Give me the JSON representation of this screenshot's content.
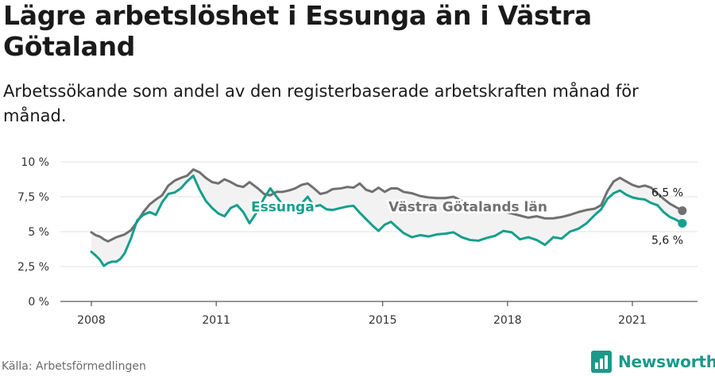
{
  "header": {
    "title": "Lägre arbetslöshet i Essunga än i Västra Götaland",
    "subtitle": "Arbetssökande som andel av den registerbaserade arbetskraften månad för månad."
  },
  "footer": {
    "source": "Källa: Arbetsförmedlingen",
    "brand": "Newsworthy",
    "brand_icon": "newsworthy-logo-icon",
    "brand_color": "#1a9a8a"
  },
  "chart_data": {
    "type": "line",
    "xlim": [
      2008.0,
      2022.5
    ],
    "ylim": [
      0,
      10
    ],
    "y_ticks": [
      {
        "value": 0,
        "label": "0 %"
      },
      {
        "value": 2.5,
        "label": "2,5 %"
      },
      {
        "value": 5,
        "label": "5 %"
      },
      {
        "value": 7.5,
        "label": "7,5 %"
      },
      {
        "value": 10,
        "label": "10 %"
      }
    ],
    "x_ticks": [
      {
        "value": 2008,
        "label": "2008"
      },
      {
        "value": 2011,
        "label": "2011"
      },
      {
        "value": 2015,
        "label": "2015"
      },
      {
        "value": 2018,
        "label": "2018"
      },
      {
        "value": 2021,
        "label": "2021"
      }
    ],
    "grid": true,
    "series": [
      {
        "name": "Västra Götalands län",
        "color": "#707070",
        "end_label": "6,5 %",
        "points": [
          [
            2008.0,
            4.95
          ],
          [
            2008.1,
            4.75
          ],
          [
            2008.2,
            4.65
          ],
          [
            2008.3,
            4.45
          ],
          [
            2008.4,
            4.3
          ],
          [
            2008.5,
            4.45
          ],
          [
            2008.6,
            4.6
          ],
          [
            2008.7,
            4.7
          ],
          [
            2008.8,
            4.8
          ],
          [
            2008.95,
            5.1
          ],
          [
            2009.1,
            5.7
          ],
          [
            2009.25,
            6.4
          ],
          [
            2009.4,
            6.95
          ],
          [
            2009.55,
            7.3
          ],
          [
            2009.7,
            7.6
          ],
          [
            2009.85,
            8.3
          ],
          [
            2010.0,
            8.65
          ],
          [
            2010.15,
            8.85
          ],
          [
            2010.3,
            9.0
          ],
          [
            2010.45,
            9.45
          ],
          [
            2010.6,
            9.25
          ],
          [
            2010.75,
            8.85
          ],
          [
            2010.9,
            8.55
          ],
          [
            2011.05,
            8.45
          ],
          [
            2011.2,
            8.75
          ],
          [
            2011.35,
            8.55
          ],
          [
            2011.5,
            8.3
          ],
          [
            2011.65,
            8.2
          ],
          [
            2011.8,
            8.55
          ],
          [
            2012.0,
            8.1
          ],
          [
            2012.15,
            7.7
          ],
          [
            2012.3,
            7.6
          ],
          [
            2012.45,
            7.85
          ],
          [
            2012.6,
            7.85
          ],
          [
            2012.75,
            7.95
          ],
          [
            2012.9,
            8.1
          ],
          [
            2013.05,
            8.35
          ],
          [
            2013.2,
            8.45
          ],
          [
            2013.35,
            8.1
          ],
          [
            2013.5,
            7.7
          ],
          [
            2013.65,
            7.8
          ],
          [
            2013.8,
            8.05
          ],
          [
            2014.0,
            8.1
          ],
          [
            2014.15,
            8.2
          ],
          [
            2014.3,
            8.15
          ],
          [
            2014.45,
            8.45
          ],
          [
            2014.6,
            8.0
          ],
          [
            2014.75,
            7.85
          ],
          [
            2014.9,
            8.15
          ],
          [
            2015.05,
            7.85
          ],
          [
            2015.2,
            8.1
          ],
          [
            2015.35,
            8.1
          ],
          [
            2015.5,
            7.85
          ],
          [
            2015.7,
            7.75
          ],
          [
            2015.9,
            7.55
          ],
          [
            2016.1,
            7.45
          ],
          [
            2016.3,
            7.4
          ],
          [
            2016.5,
            7.4
          ],
          [
            2016.7,
            7.5
          ],
          [
            2016.9,
            7.2
          ],
          [
            2017.1,
            6.95
          ],
          [
            2017.3,
            6.85
          ],
          [
            2017.5,
            6.75
          ],
          [
            2017.7,
            6.65
          ],
          [
            2017.9,
            6.45
          ],
          [
            2018.1,
            6.3
          ],
          [
            2018.3,
            6.15
          ],
          [
            2018.5,
            6.0
          ],
          [
            2018.7,
            6.1
          ],
          [
            2018.9,
            5.95
          ],
          [
            2019.1,
            5.95
          ],
          [
            2019.3,
            6.05
          ],
          [
            2019.5,
            6.2
          ],
          [
            2019.7,
            6.4
          ],
          [
            2019.9,
            6.55
          ],
          [
            2020.1,
            6.65
          ],
          [
            2020.25,
            6.9
          ],
          [
            2020.4,
            7.9
          ],
          [
            2020.55,
            8.6
          ],
          [
            2020.7,
            8.85
          ],
          [
            2020.85,
            8.6
          ],
          [
            2021.0,
            8.35
          ],
          [
            2021.15,
            8.2
          ],
          [
            2021.3,
            8.3
          ],
          [
            2021.45,
            8.15
          ],
          [
            2021.6,
            7.75
          ],
          [
            2021.75,
            7.35
          ],
          [
            2021.9,
            7.0
          ],
          [
            2022.05,
            6.75
          ],
          [
            2022.2,
            6.5
          ]
        ]
      },
      {
        "name": "Essunga",
        "color": "#12a08c",
        "end_label": "5,6 %",
        "points": [
          [
            2008.0,
            3.55
          ],
          [
            2008.1,
            3.3
          ],
          [
            2008.2,
            3.0
          ],
          [
            2008.3,
            2.55
          ],
          [
            2008.4,
            2.75
          ],
          [
            2008.5,
            2.85
          ],
          [
            2008.6,
            2.85
          ],
          [
            2008.7,
            3.05
          ],
          [
            2008.8,
            3.45
          ],
          [
            2008.95,
            4.5
          ],
          [
            2009.1,
            5.8
          ],
          [
            2009.25,
            6.2
          ],
          [
            2009.4,
            6.4
          ],
          [
            2009.55,
            6.2
          ],
          [
            2009.7,
            7.1
          ],
          [
            2009.85,
            7.7
          ],
          [
            2010.0,
            7.8
          ],
          [
            2010.15,
            8.1
          ],
          [
            2010.3,
            8.6
          ],
          [
            2010.45,
            9.0
          ],
          [
            2010.6,
            8.0
          ],
          [
            2010.75,
            7.2
          ],
          [
            2010.9,
            6.7
          ],
          [
            2011.05,
            6.3
          ],
          [
            2011.2,
            6.1
          ],
          [
            2011.35,
            6.7
          ],
          [
            2011.5,
            6.9
          ],
          [
            2011.65,
            6.4
          ],
          [
            2011.8,
            5.6
          ],
          [
            2012.0,
            6.5
          ],
          [
            2012.15,
            7.4
          ],
          [
            2012.3,
            8.1
          ],
          [
            2012.45,
            7.5
          ],
          [
            2012.6,
            6.9
          ],
          [
            2012.75,
            6.4
          ],
          [
            2012.9,
            6.6
          ],
          [
            2013.05,
            7.0
          ],
          [
            2013.2,
            7.5
          ],
          [
            2013.35,
            6.8
          ],
          [
            2013.5,
            6.9
          ],
          [
            2013.65,
            6.6
          ],
          [
            2013.8,
            6.55
          ],
          [
            2014.0,
            6.7
          ],
          [
            2014.15,
            6.8
          ],
          [
            2014.3,
            6.85
          ],
          [
            2014.45,
            6.35
          ],
          [
            2014.6,
            5.9
          ],
          [
            2014.75,
            5.45
          ],
          [
            2014.9,
            5.05
          ],
          [
            2015.05,
            5.5
          ],
          [
            2015.2,
            5.7
          ],
          [
            2015.35,
            5.3
          ],
          [
            2015.5,
            4.9
          ],
          [
            2015.7,
            4.6
          ],
          [
            2015.9,
            4.75
          ],
          [
            2016.1,
            4.65
          ],
          [
            2016.3,
            4.8
          ],
          [
            2016.5,
            4.85
          ],
          [
            2016.7,
            4.95
          ],
          [
            2016.9,
            4.6
          ],
          [
            2017.1,
            4.4
          ],
          [
            2017.3,
            4.35
          ],
          [
            2017.5,
            4.55
          ],
          [
            2017.7,
            4.7
          ],
          [
            2017.9,
            5.05
          ],
          [
            2018.1,
            4.95
          ],
          [
            2018.3,
            4.45
          ],
          [
            2018.5,
            4.6
          ],
          [
            2018.7,
            4.4
          ],
          [
            2018.9,
            4.05
          ],
          [
            2019.1,
            4.6
          ],
          [
            2019.3,
            4.5
          ],
          [
            2019.5,
            5.0
          ],
          [
            2019.7,
            5.2
          ],
          [
            2019.9,
            5.6
          ],
          [
            2020.1,
            6.2
          ],
          [
            2020.25,
            6.6
          ],
          [
            2020.4,
            7.35
          ],
          [
            2020.55,
            7.75
          ],
          [
            2020.7,
            7.95
          ],
          [
            2020.85,
            7.65
          ],
          [
            2021.0,
            7.45
          ],
          [
            2021.15,
            7.35
          ],
          [
            2021.3,
            7.3
          ],
          [
            2021.45,
            7.05
          ],
          [
            2021.6,
            6.9
          ],
          [
            2021.75,
            6.4
          ],
          [
            2021.9,
            6.05
          ],
          [
            2022.05,
            5.85
          ],
          [
            2022.2,
            5.6
          ]
        ]
      }
    ]
  }
}
